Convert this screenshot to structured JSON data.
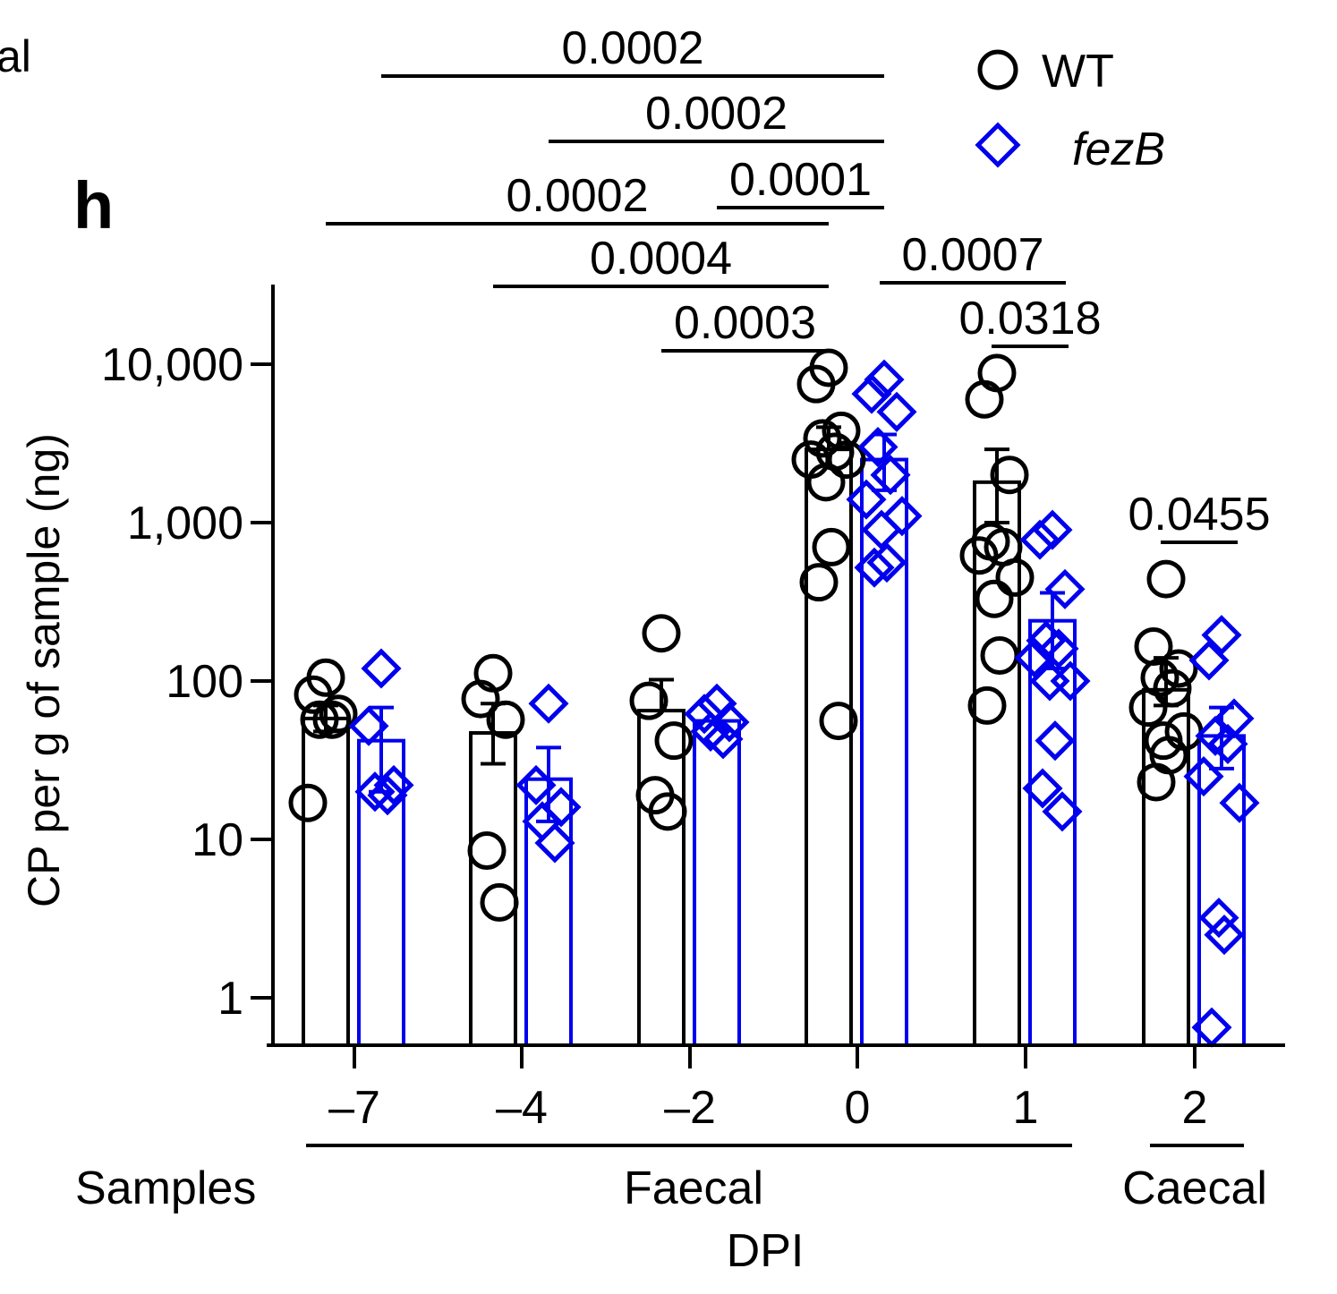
{
  "panel": {
    "cropped_label": "al",
    "panel_letter": "h"
  },
  "legend": {
    "placement": "top-right",
    "items": [
      {
        "label": "WT",
        "marker": "circle",
        "color": "#000000",
        "italic": false
      },
      {
        "label": "fezB",
        "marker": "diamond",
        "color": "#0000ee",
        "italic": true
      }
    ]
  },
  "colors": {
    "wt": "#000000",
    "fezb": "#0000ee"
  },
  "chart_data": {
    "type": "bar",
    "title": "",
    "xlabel": "DPI",
    "ylabel": "CP per g of sample (ng)",
    "yscale": "log",
    "ylim": [
      0.5,
      30000
    ],
    "yticks": [
      1,
      10,
      100,
      1000,
      10000
    ],
    "ytick_labels": [
      "1",
      "10",
      "100",
      "1,000",
      "10,000"
    ],
    "categories": [
      "–7",
      "–4",
      "–2",
      "0",
      "1",
      "2"
    ],
    "sample_row_label": "Samples",
    "sample_groups": [
      {
        "label": "Faecal",
        "from": 0,
        "to": 4
      },
      {
        "label": "Caecal",
        "from": 5,
        "to": 5
      }
    ],
    "series": [
      {
        "name": "WT",
        "marker": "circle",
        "color": "#000000",
        "means": [
          58,
          47,
          65,
          2900,
          1800,
          88
        ],
        "err_low": [
          48,
          30,
          0,
          0,
          1000,
          70
        ],
        "err_high": [
          70,
          72,
          102,
          4000,
          2900,
          140
        ],
        "points": [
          [
            105,
            82,
            62,
            57,
            57,
            17
          ],
          [
            112,
            77,
            57,
            8.5,
            4
          ],
          [
            200,
            75,
            42,
            19,
            15
          ],
          [
            9500,
            7500,
            3800,
            3400,
            2800,
            2500,
            2500,
            1800,
            700,
            420,
            56
          ],
          [
            8800,
            6000,
            2000,
            760,
            700,
            620,
            450,
            330,
            145,
            70
          ],
          [
            440,
            165,
            120,
            105,
            90,
            68,
            48,
            42,
            34,
            23
          ]
        ]
      },
      {
        "name": "fezB",
        "marker": "diamond",
        "color": "#0000ee",
        "means": [
          42,
          24,
          56,
          2500,
          240,
          45
        ],
        "err_low": [
          20,
          13,
          0,
          1600,
          120,
          28
        ],
        "err_high": [
          68,
          38,
          0,
          3600,
          360,
          68
        ],
        "points": [
          [
            120,
            52,
            22,
            20,
            19
          ],
          [
            72,
            22,
            16,
            13,
            9.5
          ],
          [
            72,
            62,
            55,
            48,
            43
          ],
          [
            8000,
            6500,
            5000,
            3000,
            2000,
            1400,
            1100,
            900,
            560,
            520
          ],
          [
            900,
            780,
            380,
            180,
            160,
            140,
            100,
            100,
            42,
            21,
            15
          ],
          [
            195,
            135,
            58,
            45,
            40,
            25,
            17,
            3.2,
            2.5,
            0.65
          ]
        ]
      }
    ],
    "comparisons": [
      {
        "label": "0.0002",
        "from": {
          "cat": 0,
          "series": 1
        },
        "to": {
          "cat": 3,
          "series": 1
        }
      },
      {
        "label": "0.0002",
        "from": {
          "cat": 1,
          "series": 1
        },
        "to": {
          "cat": 3,
          "series": 1
        }
      },
      {
        "label": "0.0001",
        "from": {
          "cat": 2,
          "series": 1
        },
        "to": {
          "cat": 3,
          "series": 1
        }
      },
      {
        "label": "0.0002",
        "from": {
          "cat": 0,
          "series": 0
        },
        "to": {
          "cat": 3,
          "series": 0
        }
      },
      {
        "label": "0.0004",
        "from": {
          "cat": 1,
          "series": 0
        },
        "to": {
          "cat": 3,
          "series": 0
        }
      },
      {
        "label": "0.0003",
        "from": {
          "cat": 2,
          "series": 0
        },
        "to": {
          "cat": 3,
          "series": 0
        }
      },
      {
        "label": "0.0007",
        "from": {
          "cat": 3,
          "series": 1
        },
        "to": {
          "cat": 4,
          "series": 1
        }
      },
      {
        "label": "0.0318",
        "from": {
          "cat": 4,
          "series": 0
        },
        "to": {
          "cat": 4,
          "series": 1
        }
      },
      {
        "label": "0.0455",
        "from": {
          "cat": 5,
          "series": 0
        },
        "to": {
          "cat": 5,
          "series": 1
        }
      }
    ]
  }
}
